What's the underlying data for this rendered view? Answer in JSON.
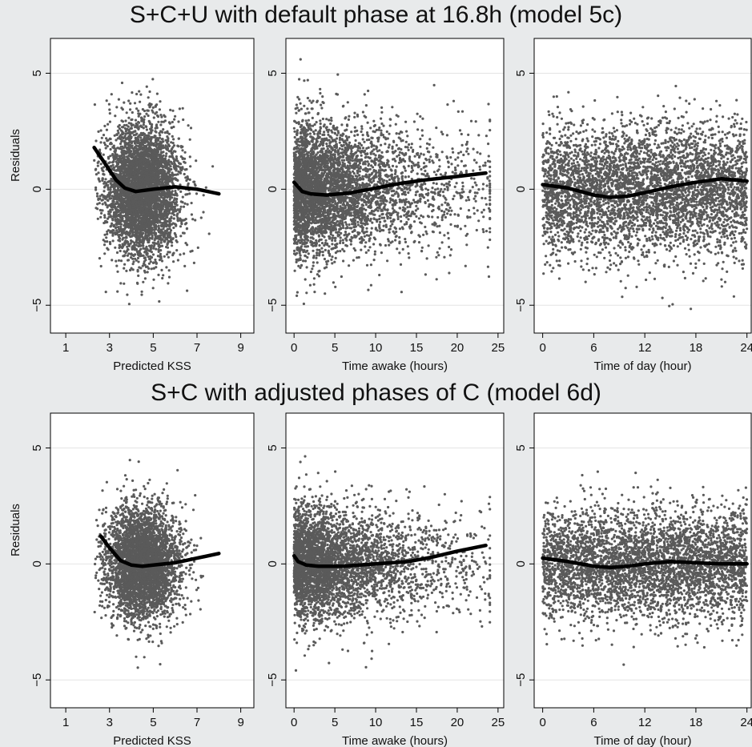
{
  "figure": {
    "row_titles": [
      "S+C+U with default phase at 16.8h (model 5c)",
      "S+C with adjusted phases of C (model 6d)"
    ]
  },
  "colors": {
    "points": "#5a5a5a",
    "smooth_line": "#000000",
    "panel_background": "#ffffff",
    "figure_background": "#e8eaeb"
  },
  "chart_data": [
    {
      "type": "scatter",
      "row": 0,
      "col": 0,
      "xlabel": "Predicted KSS",
      "ylabel": "Residuals",
      "xlim": [
        0.3,
        9.6
      ],
      "ylim": [
        -6.2,
        6.5
      ],
      "xticks": [
        1,
        3,
        5,
        7,
        9
      ],
      "yticks": [
        -5,
        0,
        5
      ],
      "grid": true,
      "point_cloud": {
        "x_range": [
          2.3,
          8.0
        ],
        "x_center": 4.5,
        "y_spread": 1.4,
        "n_approx": 4500
      },
      "smooth": {
        "x": [
          2.3,
          2.8,
          3.3,
          3.7,
          4.2,
          5.0,
          6.0,
          7.0,
          8.0
        ],
        "y": [
          1.8,
          1.1,
          0.4,
          0.05,
          -0.1,
          0.0,
          0.1,
          0.0,
          -0.2
        ]
      }
    },
    {
      "type": "scatter",
      "row": 0,
      "col": 1,
      "xlabel": "Time awake (hours)",
      "ylabel": "",
      "xlim": [
        -1.0,
        25.7
      ],
      "ylim": [
        -6.2,
        6.5
      ],
      "xticks": [
        0,
        5,
        10,
        15,
        20,
        25
      ],
      "yticks": [
        -5,
        0,
        5
      ],
      "grid": true,
      "point_cloud": {
        "x_range": [
          0.0,
          24.0
        ],
        "x_center": 7.0,
        "y_spread": 1.4,
        "n_approx": 4500
      },
      "smooth": {
        "x": [
          0.0,
          1.0,
          2.0,
          4.0,
          7.0,
          10.0,
          13.0,
          16.0,
          20.0,
          23.5
        ],
        "y": [
          0.3,
          -0.1,
          -0.2,
          -0.25,
          -0.15,
          0.05,
          0.25,
          0.4,
          0.55,
          0.7
        ]
      }
    },
    {
      "type": "scatter",
      "row": 0,
      "col": 2,
      "xlabel": "Time of day (hour)",
      "ylabel": "",
      "xlim": [
        -1.0,
        24.5
      ],
      "ylim": [
        -6.2,
        6.5
      ],
      "xticks": [
        0,
        6,
        12,
        18,
        24
      ],
      "yticks": [
        -5,
        0,
        5
      ],
      "grid": true,
      "point_cloud": {
        "x_range": [
          0.0,
          24.0
        ],
        "x_center": 12.0,
        "y_spread": 1.4,
        "n_approx": 4500
      },
      "smooth": {
        "x": [
          0.0,
          3.0,
          6.0,
          8.0,
          10.0,
          12.0,
          15.0,
          18.0,
          21.0,
          24.0
        ],
        "y": [
          0.2,
          0.05,
          -0.25,
          -0.35,
          -0.3,
          -0.15,
          0.1,
          0.3,
          0.45,
          0.35
        ]
      }
    },
    {
      "type": "scatter",
      "row": 1,
      "col": 0,
      "xlabel": "Predicted KSS",
      "ylabel": "Residuals",
      "xlim": [
        0.3,
        9.6
      ],
      "ylim": [
        -6.2,
        6.5
      ],
      "xticks": [
        1,
        3,
        5,
        7,
        9
      ],
      "yticks": [
        -5,
        0,
        5
      ],
      "grid": true,
      "point_cloud": {
        "x_range": [
          2.3,
          8.0
        ],
        "x_center": 4.5,
        "y_spread": 1.2,
        "n_approx": 4000
      },
      "smooth": {
        "x": [
          2.6,
          3.0,
          3.5,
          4.0,
          4.5,
          5.0,
          6.0,
          7.0,
          8.0
        ],
        "y": [
          1.2,
          0.7,
          0.15,
          -0.05,
          -0.1,
          -0.05,
          0.05,
          0.25,
          0.45
        ]
      }
    },
    {
      "type": "scatter",
      "row": 1,
      "col": 1,
      "xlabel": "Time awake (hours)",
      "ylabel": "",
      "xlim": [
        -1.0,
        25.7
      ],
      "ylim": [
        -6.2,
        6.5
      ],
      "xticks": [
        0,
        5,
        10,
        15,
        20,
        25
      ],
      "yticks": [
        -5,
        0,
        5
      ],
      "grid": true,
      "point_cloud": {
        "x_range": [
          0.0,
          24.0
        ],
        "x_center": 7.0,
        "y_spread": 1.2,
        "n_approx": 4000
      },
      "smooth": {
        "x": [
          0.0,
          0.5,
          1.5,
          3.0,
          6.0,
          10.0,
          14.0,
          17.0,
          20.0,
          23.5
        ],
        "y": [
          0.35,
          0.1,
          -0.05,
          -0.1,
          -0.1,
          0.0,
          0.1,
          0.3,
          0.55,
          0.8
        ]
      }
    },
    {
      "type": "scatter",
      "row": 1,
      "col": 2,
      "xlabel": "Time of day (hour)",
      "ylabel": "",
      "xlim": [
        -1.0,
        24.5
      ],
      "ylim": [
        -6.2,
        6.5
      ],
      "xticks": [
        0,
        6,
        12,
        18,
        24
      ],
      "yticks": [
        -5,
        0,
        5
      ],
      "grid": true,
      "point_cloud": {
        "x_range": [
          0.0,
          24.0
        ],
        "x_center": 12.0,
        "y_spread": 1.2,
        "n_approx": 4000
      },
      "smooth": {
        "x": [
          0.0,
          3.0,
          6.0,
          8.0,
          10.0,
          12.0,
          15.0,
          18.0,
          21.0,
          24.0
        ],
        "y": [
          0.25,
          0.1,
          -0.1,
          -0.15,
          -0.1,
          0.0,
          0.1,
          0.05,
          0.0,
          0.0
        ]
      }
    }
  ]
}
